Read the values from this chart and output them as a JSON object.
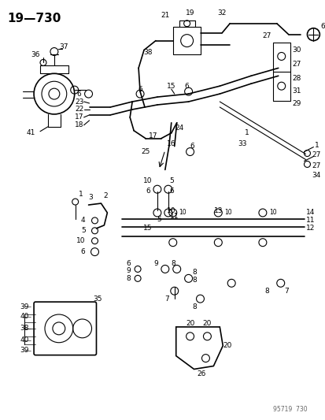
{
  "title": "19—730",
  "watermark": "95719  730",
  "bg_color": "#ffffff",
  "fg_color": "#000000",
  "fig_width": 4.14,
  "fig_height": 5.33,
  "dpi": 100
}
